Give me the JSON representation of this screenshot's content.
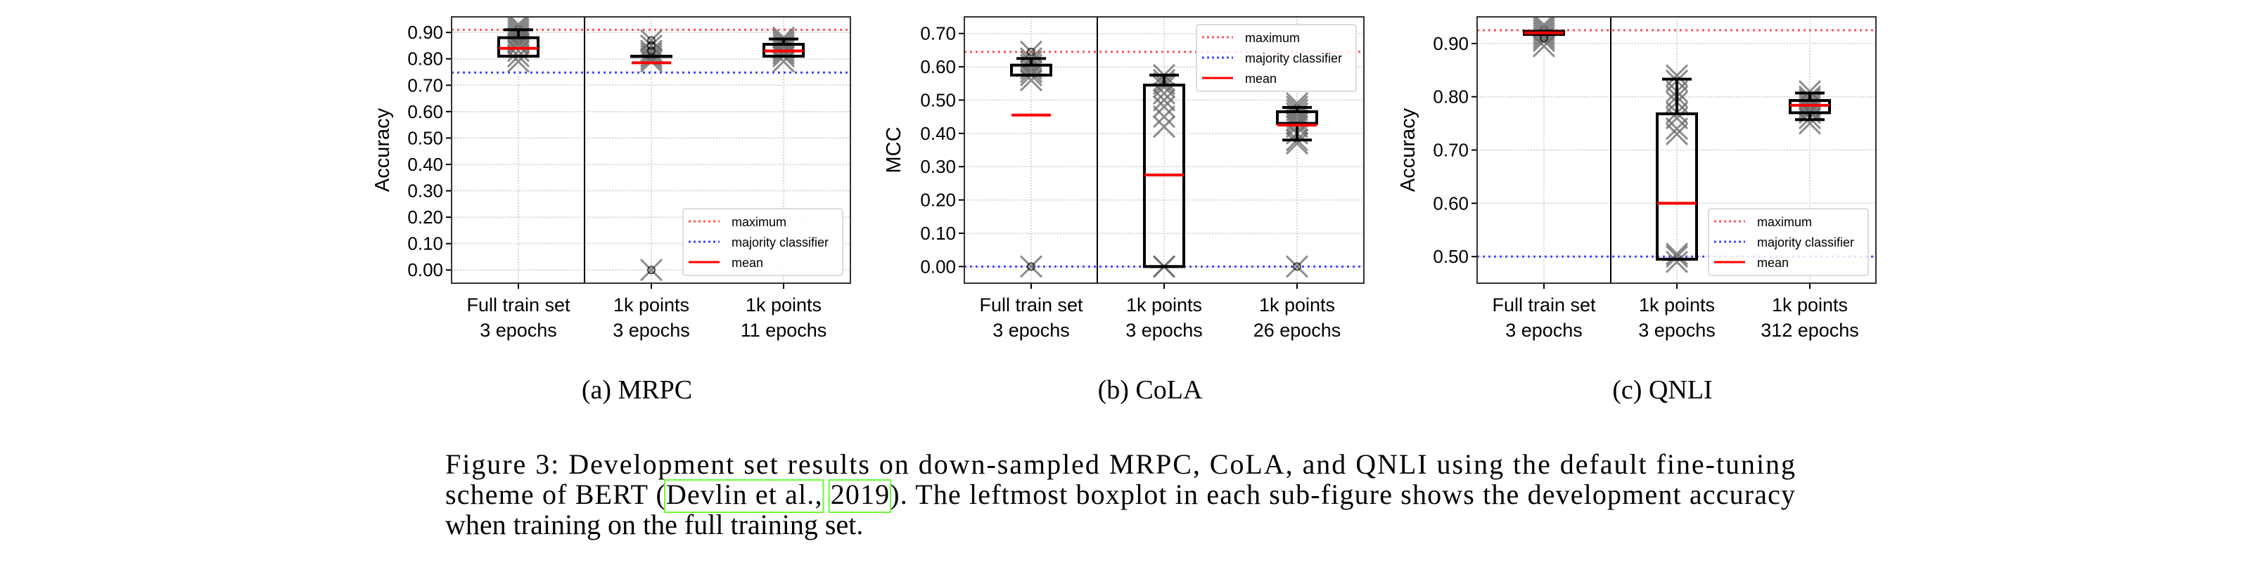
{
  "chart_data": [
    {
      "type": "boxplot",
      "subcaption": "(a) MRPC",
      "ylabel": "Accuracy",
      "ylim": [
        -0.05,
        0.959
      ],
      "yticks": [
        0,
        0.1,
        0.2,
        0.3,
        0.4,
        0.5,
        0.6,
        0.7,
        0.8,
        0.9
      ],
      "ytick_labels": [
        "0.00",
        "0.10",
        "0.20",
        "0.30",
        "0.40",
        "0.50",
        "0.60",
        "0.70",
        "0.80",
        "0.90"
      ],
      "grid": true,
      "legend_position": "bottom-right",
      "legend": [
        "maximum",
        "majority classifier",
        "mean"
      ],
      "maximum": 0.91,
      "majority_classifier": 0.748,
      "categories": [
        {
          "line1": "Full train set",
          "line2": "3 epochs",
          "q1": 0.81,
          "q3": 0.88,
          "whisker_low": 0.81,
          "whisker_high": 0.91,
          "mean": 0.84,
          "outliers": [],
          "runs": [
            0.79,
            0.81,
            0.83,
            0.85,
            0.86,
            0.87,
            0.88,
            0.89,
            0.9,
            0.91,
            0.92,
            0.93
          ]
        },
        {
          "line1": "1k points",
          "line2": "3 epochs",
          "q1": 0.81,
          "q3": 0.81,
          "whisker_low": 0.81,
          "whisker_high": 0.81,
          "mean": 0.785,
          "outliers": [
            0.87,
            0.85,
            0.83,
            0.0
          ],
          "runs": [
            0.79,
            0.8,
            0.81,
            0.82,
            0.83,
            0.85,
            0.87,
            0.0
          ]
        },
        {
          "line1": "1k points",
          "line2": "11 epochs",
          "q1": 0.81,
          "q3": 0.855,
          "whisker_low": 0.81,
          "whisker_high": 0.875,
          "mean": 0.83,
          "outliers": [],
          "runs": [
            0.79,
            0.81,
            0.82,
            0.83,
            0.84,
            0.85,
            0.86,
            0.87,
            0.88
          ]
        }
      ]
    },
    {
      "type": "boxplot",
      "subcaption": "(b) CoLA",
      "ylabel": "MCC",
      "ylim": [
        -0.05,
        0.75
      ],
      "yticks": [
        0,
        0.1,
        0.2,
        0.3,
        0.4,
        0.5,
        0.6,
        0.7
      ],
      "ytick_labels": [
        "0.00",
        "0.10",
        "0.20",
        "0.30",
        "0.40",
        "0.50",
        "0.60",
        "0.70"
      ],
      "grid": true,
      "legend_position": "top-right",
      "legend": [
        "maximum",
        "majority classifier",
        "mean"
      ],
      "maximum": 0.645,
      "majority_classifier": 0.0,
      "categories": [
        {
          "line1": "Full train set",
          "line2": "3 epochs",
          "q1": 0.575,
          "q3": 0.605,
          "whisker_low": 0.575,
          "whisker_high": 0.625,
          "mean": 0.455,
          "outliers": [
            0.645,
            0.0
          ],
          "runs": [
            0.56,
            0.575,
            0.585,
            0.595,
            0.605,
            0.615,
            0.625,
            0.645,
            0.0
          ]
        },
        {
          "line1": "1k points",
          "line2": "3 epochs",
          "q1": 0.0,
          "q3": 0.545,
          "whisker_low": 0.0,
          "whisker_high": 0.575,
          "mean": 0.275,
          "outliers": [],
          "runs": [
            0.0,
            0.0,
            0.42,
            0.45,
            0.48,
            0.5,
            0.52,
            0.54,
            0.55,
            0.56,
            0.575
          ]
        },
        {
          "line1": "1k points",
          "line2": "26 epochs",
          "q1": 0.43,
          "q3": 0.465,
          "whisker_low": 0.38,
          "whisker_high": 0.478,
          "mean": 0.425,
          "outliers": [
            0.0
          ],
          "runs": [
            0.37,
            0.38,
            0.4,
            0.42,
            0.43,
            0.44,
            0.45,
            0.46,
            0.47,
            0.48,
            0.49,
            0.0
          ]
        }
      ]
    },
    {
      "type": "boxplot",
      "subcaption": "(c) QNLI",
      "ylabel": "Accuracy",
      "ylim": [
        0.45,
        0.95
      ],
      "yticks": [
        0.5,
        0.6,
        0.7,
        0.8,
        0.9
      ],
      "ytick_labels": [
        "0.50",
        "0.60",
        "0.70",
        "0.80",
        "0.90"
      ],
      "grid": true,
      "legend_position": "bottom-right",
      "legend": [
        "maximum",
        "majority classifier",
        "mean"
      ],
      "maximum": 0.925,
      "majority_classifier": 0.5,
      "categories": [
        {
          "line1": "Full train set",
          "line2": "3 epochs",
          "q1": 0.917,
          "q3": 0.923,
          "whisker_low": 0.917,
          "whisker_high": 0.923,
          "mean": 0.92,
          "outliers": [
            0.91
          ],
          "runs": [
            0.895,
            0.905,
            0.91,
            0.915,
            0.92,
            0.925,
            0.93,
            0.935
          ]
        },
        {
          "line1": "1k points",
          "line2": "3 epochs",
          "q1": 0.495,
          "q3": 0.768,
          "whisker_low": 0.495,
          "whisker_high": 0.833,
          "mean": 0.6,
          "outliers": [],
          "runs": [
            0.49,
            0.5,
            0.505,
            0.73,
            0.74,
            0.76,
            0.77,
            0.79,
            0.8,
            0.81,
            0.83,
            0.84
          ]
        },
        {
          "line1": "1k points",
          "line2": "312 epochs",
          "q1": 0.77,
          "q3": 0.793,
          "whisker_low": 0.757,
          "whisker_high": 0.807,
          "mean": 0.784,
          "outliers": [],
          "runs": [
            0.75,
            0.76,
            0.77,
            0.775,
            0.78,
            0.785,
            0.79,
            0.795,
            0.8,
            0.81
          ]
        }
      ]
    }
  ],
  "colors": {
    "maximum": "#ff5555",
    "majority": "#4444ff",
    "mean": "#ff0000",
    "runs": "#666666",
    "link_box": "#66ff33"
  },
  "caption": {
    "line1": "Figure 3: Development set results on down-sampled MRPC, CoLA, and QNLI using the default fine-tuning",
    "line2_pre": "scheme of BERT (",
    "link_author": "Devlin et al.,",
    "line2_space": " ",
    "link_year": "2019",
    "line2_post": "). The leftmost boxplot in each sub-figure shows the development accuracy",
    "line3": "when training on the full training set."
  }
}
